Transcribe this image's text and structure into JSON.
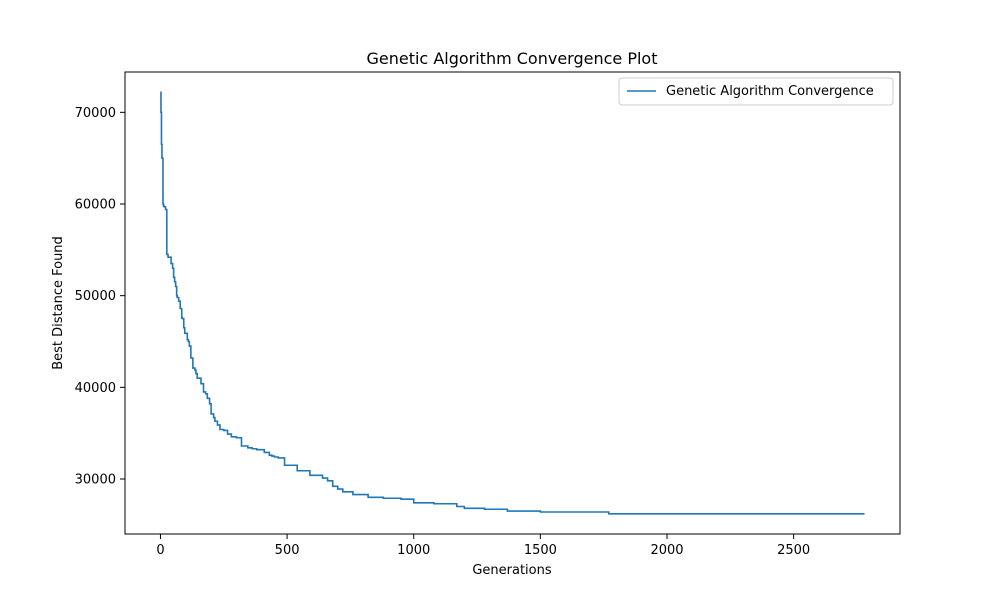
{
  "chart_data": {
    "type": "line",
    "title": "Genetic Algorithm Convergence Plot",
    "xlabel": "Generations",
    "ylabel": "Best Distance Found",
    "xlim": [
      -140,
      2920
    ],
    "ylim": [
      24000,
      74400
    ],
    "xticks": [
      0,
      500,
      1000,
      1500,
      2000,
      2500
    ],
    "xtick_labels": [
      "0",
      "500",
      "1000",
      "1500",
      "2000",
      "2500"
    ],
    "yticks": [
      30000,
      40000,
      50000,
      60000,
      70000
    ],
    "ytick_labels": [
      "30000",
      "40000",
      "50000",
      "60000",
      "70000"
    ],
    "grid": false,
    "legend_position": "top-right",
    "series": [
      {
        "name": "Genetic Algorithm Convergence",
        "color": "#1f77b4",
        "step": true,
        "x": [
          0,
          2,
          4,
          6,
          10,
          12,
          14,
          20,
          25,
          30,
          42,
          48,
          52,
          56,
          60,
          64,
          66,
          72,
          78,
          84,
          86,
          92,
          96,
          106,
          110,
          114,
          120,
          128,
          136,
          140,
          145,
          160,
          170,
          178,
          185,
          194,
          200,
          210,
          215,
          225,
          235,
          250,
          265,
          280,
          300,
          320,
          345,
          362,
          380,
          410,
          430,
          440,
          450,
          465,
          490,
          540,
          590,
          640,
          660,
          680,
          700,
          720,
          760,
          820,
          880,
          950,
          1000,
          1080,
          1170,
          1200,
          1280,
          1370,
          1500,
          1770,
          2780
        ],
        "y": [
          72200,
          70000,
          66500,
          65000,
          60000,
          59800,
          59700,
          59400,
          54500,
          54200,
          53500,
          53000,
          52000,
          51500,
          51000,
          50000,
          49800,
          49400,
          48600,
          47600,
          47500,
          46500,
          45900,
          45200,
          45000,
          44500,
          43200,
          42100,
          41900,
          41500,
          41000,
          40400,
          39500,
          39300,
          38800,
          38200,
          37100,
          36700,
          36300,
          35900,
          35400,
          35300,
          34900,
          34600,
          34500,
          33600,
          33400,
          33300,
          33200,
          32900,
          32600,
          32500,
          32400,
          32300,
          31500,
          30900,
          30400,
          30100,
          29800,
          29200,
          28900,
          28600,
          28300,
          28000,
          27900,
          27800,
          27400,
          27300,
          27000,
          26800,
          26700,
          26500,
          26400,
          26200,
          26200
        ]
      }
    ]
  }
}
